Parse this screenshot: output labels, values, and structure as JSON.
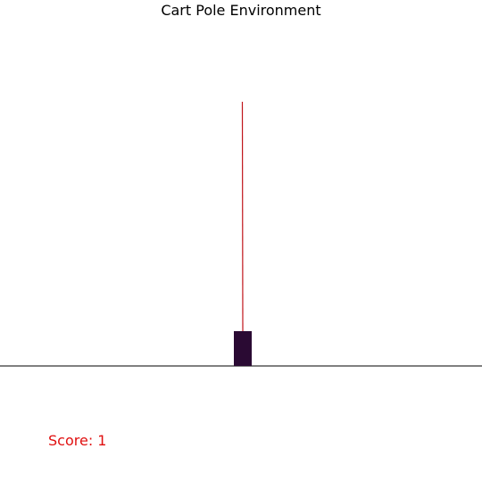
{
  "title": "Cart Pole Environment",
  "score_text": "Score: 1",
  "colors": {
    "pole": "#c0151b",
    "cart": "#2a0a33",
    "track": "#000000",
    "score": "#e01010"
  }
}
